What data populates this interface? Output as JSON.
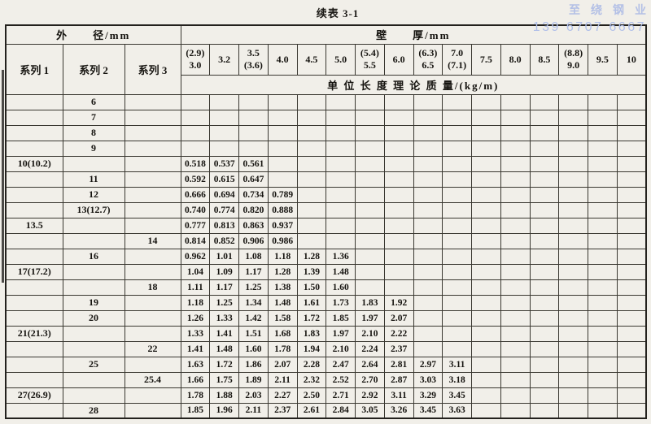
{
  "title": "续表 3-1",
  "watermark": {
    "company": "至绕钢业",
    "phone": "139 6707 6667",
    "color": "#b0bfe9"
  },
  "table": {
    "outer_diameter_header": "外　　径/mm",
    "wall_thickness_header": "壁　　厚/mm",
    "series_headers": [
      "系列 1",
      "系列 2",
      "系列 3"
    ],
    "unit_mass_header": "单 位 长 度 理 论 质 量/(kg/m)",
    "thickness_columns": [
      [
        "(2.9)",
        "3.0"
      ],
      [
        "3.2"
      ],
      [
        "3.5",
        "(3.6)"
      ],
      [
        "4.0"
      ],
      [
        "4.5"
      ],
      [
        "5.0"
      ],
      [
        "(5.4)",
        "5.5"
      ],
      [
        "6.0"
      ],
      [
        "(6.3)",
        "6.5"
      ],
      [
        "7.0",
        "(7.1)"
      ],
      [
        "7.5"
      ],
      [
        "8.0"
      ],
      [
        "8.5"
      ],
      [
        "(8.8)",
        "9.0"
      ],
      [
        "9.5"
      ],
      [
        "10"
      ]
    ],
    "rows": [
      {
        "s1": "",
        "s2": "6",
        "s3": "",
        "values": []
      },
      {
        "s1": "",
        "s2": "7",
        "s3": "",
        "values": []
      },
      {
        "s1": "",
        "s2": "8",
        "s3": "",
        "values": []
      },
      {
        "s1": "",
        "s2": "9",
        "s3": "",
        "values": []
      },
      {
        "s1": "10(10.2)",
        "s2": "",
        "s3": "",
        "values": [
          "0.518",
          "0.537",
          "0.561"
        ]
      },
      {
        "s1": "",
        "s2": "11",
        "s3": "",
        "values": [
          "0.592",
          "0.615",
          "0.647"
        ]
      },
      {
        "s1": "",
        "s2": "12",
        "s3": "",
        "values": [
          "0.666",
          "0.694",
          "0.734",
          "0.789"
        ]
      },
      {
        "s1": "",
        "s2": "13(12.7)",
        "s3": "",
        "values": [
          "0.740",
          "0.774",
          "0.820",
          "0.888"
        ]
      },
      {
        "s1": "13.5",
        "s2": "",
        "s3": "",
        "values": [
          "0.777",
          "0.813",
          "0.863",
          "0.937"
        ]
      },
      {
        "s1": "",
        "s2": "",
        "s3": "14",
        "values": [
          "0.814",
          "0.852",
          "0.906",
          "0.986"
        ]
      },
      {
        "s1": "",
        "s2": "16",
        "s3": "",
        "values": [
          "0.962",
          "1.01",
          "1.08",
          "1.18",
          "1.28",
          "1.36"
        ]
      },
      {
        "s1": "17(17.2)",
        "s2": "",
        "s3": "",
        "values": [
          "1.04",
          "1.09",
          "1.17",
          "1.28",
          "1.39",
          "1.48"
        ]
      },
      {
        "s1": "",
        "s2": "",
        "s3": "18",
        "values": [
          "1.11",
          "1.17",
          "1.25",
          "1.38",
          "1.50",
          "1.60"
        ]
      },
      {
        "s1": "",
        "s2": "19",
        "s3": "",
        "values": [
          "1.18",
          "1.25",
          "1.34",
          "1.48",
          "1.61",
          "1.73",
          "1.83",
          "1.92"
        ]
      },
      {
        "s1": "",
        "s2": "20",
        "s3": "",
        "values": [
          "1.26",
          "1.33",
          "1.42",
          "1.58",
          "1.72",
          "1.85",
          "1.97",
          "2.07"
        ]
      },
      {
        "s1": "21(21.3)",
        "s2": "",
        "s3": "",
        "values": [
          "1.33",
          "1.41",
          "1.51",
          "1.68",
          "1.83",
          "1.97",
          "2.10",
          "2.22"
        ]
      },
      {
        "s1": "",
        "s2": "",
        "s3": "22",
        "values": [
          "1.41",
          "1.48",
          "1.60",
          "1.78",
          "1.94",
          "2.10",
          "2.24",
          "2.37"
        ]
      },
      {
        "s1": "",
        "s2": "25",
        "s3": "",
        "values": [
          "1.63",
          "1.72",
          "1.86",
          "2.07",
          "2.28",
          "2.47",
          "2.64",
          "2.81",
          "2.97",
          "3.11"
        ]
      },
      {
        "s1": "",
        "s2": "",
        "s3": "25.4",
        "values": [
          "1.66",
          "1.75",
          "1.89",
          "2.11",
          "2.32",
          "2.52",
          "2.70",
          "2.87",
          "3.03",
          "3.18"
        ]
      },
      {
        "s1": "27(26.9)",
        "s2": "",
        "s3": "",
        "values": [
          "1.78",
          "1.88",
          "2.03",
          "2.27",
          "2.50",
          "2.71",
          "2.92",
          "3.11",
          "3.29",
          "3.45"
        ]
      },
      {
        "s1": "",
        "s2": "28",
        "s3": "",
        "values": [
          "1.85",
          "1.96",
          "2.11",
          "2.37",
          "2.61",
          "2.84",
          "3.05",
          "3.26",
          "3.45",
          "3.63"
        ]
      }
    ]
  }
}
